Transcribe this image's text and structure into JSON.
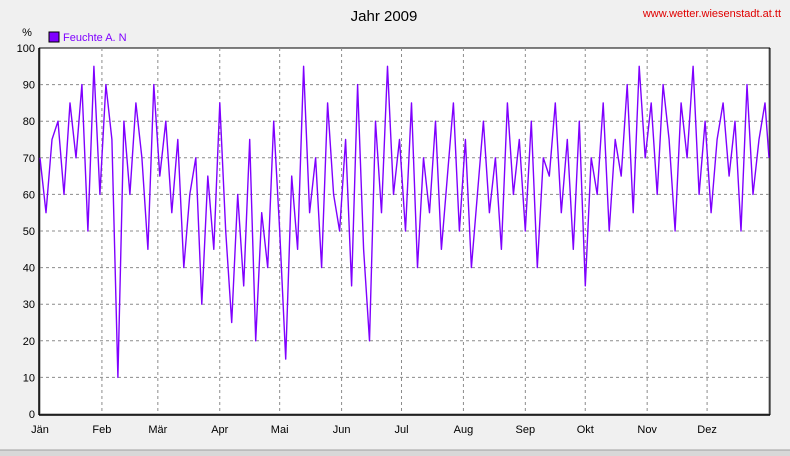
{
  "chart_data": {
    "type": "line",
    "title": "Jahr 2009",
    "source": "www.wetter.wiesenstadt.at.tt",
    "ylabel": "%",
    "ylim": [
      0,
      100
    ],
    "yticks": [
      0,
      10,
      20,
      30,
      40,
      50,
      60,
      70,
      80,
      90,
      100
    ],
    "xlim": [
      0,
      365
    ],
    "grid": true,
    "legend_position": "top-left",
    "months": [
      {
        "label": "Jän",
        "day": 0
      },
      {
        "label": "Feb",
        "day": 31
      },
      {
        "label": "Mär",
        "day": 59
      },
      {
        "label": "Apr",
        "day": 90
      },
      {
        "label": "Mai",
        "day": 120
      },
      {
        "label": "Jun",
        "day": 151
      },
      {
        "label": "Jul",
        "day": 181
      },
      {
        "label": "Aug",
        "day": 212
      },
      {
        "label": "Sep",
        "day": 243
      },
      {
        "label": "Okt",
        "day": 273
      },
      {
        "label": "Nov",
        "day": 304
      },
      {
        "label": "Dez",
        "day": 334
      }
    ],
    "series": [
      {
        "name": "Feuchte A. N",
        "color": "#7f00ff",
        "x": [
          0,
          3,
          6,
          9,
          12,
          15,
          18,
          21,
          24,
          27,
          30,
          33,
          36,
          39,
          42,
          45,
          48,
          51,
          54,
          57,
          60,
          63,
          66,
          69,
          72,
          75,
          78,
          81,
          84,
          87,
          90,
          93,
          96,
          99,
          102,
          105,
          108,
          111,
          114,
          117,
          120,
          123,
          126,
          129,
          132,
          135,
          138,
          141,
          144,
          147,
          150,
          153,
          156,
          159,
          162,
          165,
          168,
          171,
          174,
          177,
          180,
          183,
          186,
          189,
          192,
          195,
          198,
          201,
          204,
          207,
          210,
          213,
          216,
          219,
          222,
          225,
          228,
          231,
          234,
          237,
          240,
          243,
          246,
          249,
          252,
          255,
          258,
          261,
          264,
          267,
          270,
          273,
          276,
          279,
          282,
          285,
          288,
          291,
          294,
          297,
          300,
          303,
          306,
          309,
          312,
          315,
          318,
          321,
          324,
          327,
          330,
          333,
          336,
          339,
          342,
          345,
          348,
          351,
          354,
          357,
          360,
          363,
          365
        ],
        "y": [
          70,
          55,
          75,
          80,
          60,
          85,
          70,
          90,
          50,
          95,
          60,
          90,
          75,
          10,
          80,
          60,
          85,
          70,
          45,
          90,
          65,
          80,
          55,
          75,
          40,
          60,
          70,
          30,
          65,
          45,
          85,
          50,
          25,
          60,
          35,
          75,
          20,
          55,
          40,
          80,
          50,
          15,
          65,
          45,
          95,
          55,
          70,
          40,
          85,
          60,
          50,
          75,
          35,
          90,
          45,
          20,
          80,
          55,
          95,
          60,
          75,
          50,
          85,
          40,
          70,
          55,
          80,
          45,
          65,
          85,
          50,
          75,
          40,
          60,
          80,
          55,
          70,
          45,
          85,
          60,
          75,
          50,
          80,
          40,
          70,
          65,
          85,
          55,
          75,
          45,
          80,
          35,
          70,
          60,
          85,
          50,
          75,
          65,
          90,
          55,
          95,
          70,
          85,
          60,
          90,
          75,
          50,
          85,
          70,
          95,
          60,
          80,
          55,
          75,
          85,
          65,
          80,
          50,
          90,
          60,
          75,
          85,
          70
        ]
      }
    ]
  }
}
